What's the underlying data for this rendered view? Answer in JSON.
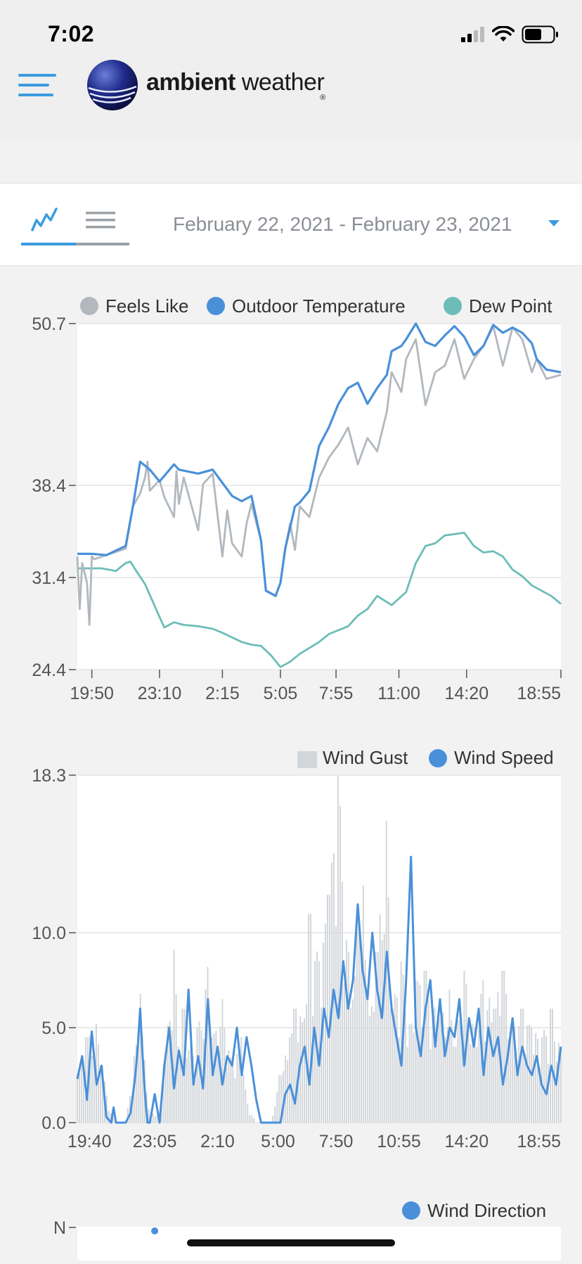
{
  "status_bar": {
    "time": "7:02"
  },
  "header": {
    "menu_icon": "hamburger-menu-icon",
    "logo": {
      "word1": "ambient",
      "word2": "weather",
      "registered": "®"
    }
  },
  "controls": {
    "chart_view_icon": "line-chart-icon",
    "list_view_icon": "list-icon",
    "date_range": "February 22, 2021 - February 23, 2021",
    "dropdown_icon": "caret-down-icon"
  },
  "colors": {
    "accent": "#3c9be0",
    "outdoor_temperature": "#4a90d9",
    "feels_like": "#b2b8be",
    "dew_point": "#6cbdb8",
    "wind_gust": "#d2d6da",
    "wind_speed": "#4a90d9",
    "wind_direction": "#4a90d9"
  },
  "chart_data": [
    {
      "type": "line",
      "legend": [
        "Feels Like",
        "Outdoor Temperature",
        "Dew Point"
      ],
      "y_ticks": [
        "50.7",
        "38.4",
        "31.4",
        "24.4"
      ],
      "x_ticks": [
        "19:50",
        "23:10",
        "2:15",
        "5:05",
        "7:55",
        "11:00",
        "14:20",
        "18:55"
      ],
      "ylim": [
        24.4,
        50.7
      ],
      "grid": true,
      "series": [
        {
          "name": "Outdoor Temperature",
          "x": [
            0,
            0.03,
            0.06,
            0.1,
            0.115,
            0.13,
            0.15,
            0.17,
            0.2,
            0.21,
            0.25,
            0.28,
            0.32,
            0.34,
            0.36,
            0.38,
            0.39,
            0.41,
            0.42,
            0.43,
            0.45,
            0.46,
            0.48,
            0.5,
            0.52,
            0.54,
            0.56,
            0.58,
            0.6,
            0.62,
            0.64,
            0.65,
            0.67,
            0.68,
            0.7,
            0.72,
            0.74,
            0.76,
            0.78,
            0.8,
            0.82,
            0.84,
            0.86,
            0.88,
            0.9,
            0.92,
            0.94,
            0.95,
            0.97,
            1.0
          ],
          "values": [
            33.2,
            33.2,
            33.1,
            33.8,
            36.8,
            40.2,
            39.6,
            38.7,
            40.0,
            39.6,
            39.3,
            39.6,
            37.6,
            37.2,
            37.6,
            34.2,
            30.4,
            30.0,
            31.0,
            33.6,
            36.8,
            37.1,
            38.0,
            41.4,
            42.8,
            44.6,
            45.8,
            46.2,
            44.6,
            45.8,
            46.8,
            48.6,
            49.0,
            49.5,
            50.7,
            49.3,
            49.0,
            49.8,
            50.5,
            49.7,
            48.3,
            49.0,
            50.6,
            50.0,
            50.4,
            50.0,
            49.2,
            48.0,
            47.2,
            47.0
          ]
        },
        {
          "name": "Feels Like",
          "x": [
            0,
            0.005,
            0.01,
            0.02,
            0.025,
            0.03,
            0.035,
            0.06,
            0.1,
            0.115,
            0.13,
            0.14,
            0.145,
            0.15,
            0.17,
            0.18,
            0.2,
            0.205,
            0.21,
            0.22,
            0.25,
            0.26,
            0.28,
            0.3,
            0.31,
            0.32,
            0.34,
            0.35,
            0.36,
            0.38,
            0.39,
            0.41,
            0.42,
            0.43,
            0.44,
            0.45,
            0.46,
            0.48,
            0.5,
            0.52,
            0.54,
            0.56,
            0.58,
            0.6,
            0.62,
            0.64,
            0.65,
            0.67,
            0.68,
            0.7,
            0.72,
            0.74,
            0.76,
            0.78,
            0.8,
            0.82,
            0.84,
            0.86,
            0.88,
            0.9,
            0.92,
            0.94,
            0.95,
            0.97,
            1.0
          ],
          "values": [
            33.0,
            29.0,
            32.5,
            31.0,
            27.8,
            33.0,
            32.8,
            33.1,
            33.6,
            36.8,
            37.8,
            39.0,
            40.2,
            38.0,
            38.8,
            37.5,
            36.0,
            39.5,
            37.0,
            39.0,
            35.0,
            38.5,
            39.3,
            33.0,
            36.5,
            34.0,
            33.0,
            35.5,
            37.0,
            34.2,
            30.4,
            30.0,
            31.0,
            33.6,
            35.5,
            33.5,
            36.8,
            36.0,
            39.0,
            40.5,
            41.5,
            42.8,
            40.0,
            42.0,
            41.0,
            44.0,
            47.0,
            45.5,
            48.0,
            49.5,
            44.5,
            47.0,
            47.5,
            49.5,
            46.5,
            48.0,
            49.0,
            50.5,
            47.5,
            50.4,
            49.5,
            47.0,
            48.0,
            46.5,
            46.8
          ]
        },
        {
          "name": "Dew Point",
          "x": [
            0,
            0.05,
            0.08,
            0.1,
            0.11,
            0.12,
            0.14,
            0.17,
            0.18,
            0.2,
            0.22,
            0.25,
            0.28,
            0.3,
            0.34,
            0.36,
            0.38,
            0.4,
            0.42,
            0.44,
            0.46,
            0.5,
            0.52,
            0.56,
            0.58,
            0.6,
            0.62,
            0.65,
            0.68,
            0.7,
            0.72,
            0.74,
            0.76,
            0.8,
            0.82,
            0.84,
            0.86,
            0.88,
            0.9,
            0.92,
            0.94,
            0.96,
            0.98,
            1.0
          ],
          "values": [
            32.1,
            32.1,
            31.9,
            32.5,
            32.6,
            32.0,
            30.9,
            28.4,
            27.6,
            28.0,
            27.8,
            27.7,
            27.5,
            27.2,
            26.5,
            26.3,
            26.2,
            25.5,
            24.6,
            25.0,
            25.6,
            26.5,
            27.1,
            27.7,
            28.5,
            29.0,
            30.0,
            29.3,
            30.3,
            32.5,
            33.8,
            34.0,
            34.6,
            34.8,
            33.8,
            33.3,
            33.4,
            33.0,
            32.0,
            31.5,
            30.8,
            30.4,
            30.0,
            29.4
          ]
        }
      ]
    },
    {
      "type": "bar",
      "legend": [
        "Wind Gust",
        "Wind Speed"
      ],
      "y_ticks": [
        "18.3",
        "10.0",
        "5.0",
        "0.0"
      ],
      "x_ticks": [
        "19:40",
        "23:05",
        "2:10",
        "5:00",
        "7:50",
        "10:55",
        "14:20",
        "18:55"
      ],
      "ylim": [
        0,
        18.3
      ],
      "grid": true,
      "series": [
        {
          "name": "Wind Gust",
          "x": [
            0,
            0.02,
            0.04,
            0.05,
            0.07,
            0.08,
            0.1,
            0.12,
            0.13,
            0.14,
            0.15,
            0.17,
            0.18,
            0.2,
            0.21,
            0.22,
            0.24,
            0.25,
            0.27,
            0.28,
            0.3,
            0.32,
            0.34,
            0.35,
            0.37,
            0.38,
            0.4,
            0.42,
            0.44,
            0.45,
            0.47,
            0.48,
            0.5,
            0.52,
            0.54,
            0.56,
            0.57,
            0.58,
            0.59,
            0.6,
            0.61,
            0.62,
            0.64,
            0.65,
            0.67,
            0.69,
            0.7,
            0.72,
            0.74,
            0.75,
            0.77,
            0.78,
            0.8,
            0.82,
            0.84,
            0.86,
            0.88,
            0.9,
            0.92,
            0.94,
            0.96,
            0.98,
            1.0
          ],
          "values": [
            2.5,
            4.5,
            5.2,
            3.0,
            0.5,
            0.0,
            0.0,
            3.5,
            6.8,
            3.0,
            0.5,
            0.5,
            3.0,
            9.1,
            4.0,
            6.0,
            3.5,
            5.0,
            8.2,
            4.5,
            6.5,
            3.0,
            4.5,
            1.0,
            0.0,
            0.0,
            0.0,
            2.5,
            4.5,
            6.0,
            5.5,
            11.0,
            8.5,
            12.0,
            18.3,
            9.0,
            6.5,
            10.5,
            12.5,
            7.0,
            6.0,
            9.0,
            15.9,
            6.0,
            8.5,
            5.0,
            7.5,
            8.0,
            6.0,
            5.5,
            7.0,
            4.0,
            8.0,
            5.0,
            7.5,
            6.0,
            8.0,
            5.5,
            6.0,
            5.0,
            4.5,
            6.0,
            4.0
          ]
        },
        {
          "name": "Wind Speed",
          "x": [
            0,
            0.01,
            0.02,
            0.03,
            0.04,
            0.05,
            0.06,
            0.07,
            0.075,
            0.08,
            0.09,
            0.1,
            0.11,
            0.12,
            0.125,
            0.13,
            0.135,
            0.14,
            0.145,
            0.15,
            0.16,
            0.17,
            0.18,
            0.19,
            0.2,
            0.21,
            0.22,
            0.23,
            0.24,
            0.25,
            0.26,
            0.27,
            0.28,
            0.29,
            0.3,
            0.31,
            0.32,
            0.33,
            0.34,
            0.35,
            0.36,
            0.37,
            0.38,
            0.39,
            0.4,
            0.41,
            0.42,
            0.43,
            0.44,
            0.45,
            0.46,
            0.47,
            0.48,
            0.49,
            0.5,
            0.51,
            0.52,
            0.53,
            0.54,
            0.55,
            0.56,
            0.57,
            0.58,
            0.59,
            0.6,
            0.61,
            0.62,
            0.63,
            0.64,
            0.65,
            0.66,
            0.67,
            0.68,
            0.69,
            0.7,
            0.71,
            0.72,
            0.73,
            0.74,
            0.75,
            0.76,
            0.77,
            0.78,
            0.79,
            0.8,
            0.81,
            0.82,
            0.83,
            0.84,
            0.85,
            0.86,
            0.87,
            0.88,
            0.89,
            0.9,
            0.91,
            0.92,
            0.93,
            0.94,
            0.95,
            0.96,
            0.97,
            0.98,
            0.99,
            1.0
          ],
          "values": [
            2.3,
            3.5,
            1.2,
            4.8,
            2.0,
            3.0,
            0.3,
            0.0,
            0.8,
            0.0,
            0.0,
            0.0,
            0.5,
            2.5,
            4.0,
            6.0,
            3.5,
            1.5,
            0.0,
            0.0,
            1.5,
            0.0,
            3.0,
            5.0,
            1.8,
            3.8,
            2.5,
            7.0,
            2.0,
            3.5,
            1.8,
            6.5,
            2.5,
            4.0,
            2.0,
            3.5,
            3.0,
            5.0,
            2.5,
            4.5,
            3.0,
            1.2,
            0.0,
            0.0,
            0.0,
            0.0,
            0.0,
            1.5,
            2.0,
            1.0,
            3.0,
            4.0,
            2.0,
            5.0,
            3.0,
            6.0,
            4.5,
            7.0,
            5.5,
            8.5,
            6.0,
            7.5,
            11.5,
            8.0,
            6.5,
            10.0,
            7.0,
            5.5,
            9.0,
            6.0,
            4.5,
            3.0,
            7.5,
            14.0,
            5.0,
            3.5,
            6.0,
            7.5,
            4.0,
            6.5,
            3.5,
            5.0,
            4.5,
            6.5,
            3.0,
            5.5,
            4.0,
            6.0,
            2.5,
            5.0,
            3.5,
            4.5,
            2.0,
            3.5,
            5.5,
            2.5,
            4.0,
            3.0,
            2.5,
            3.5,
            2.0,
            1.5,
            3.0,
            2.0,
            4.0
          ]
        }
      ]
    },
    {
      "type": "scatter",
      "legend": [
        "Wind Direction"
      ],
      "y_ticks": [
        "N"
      ],
      "series": [
        {
          "name": "Wind Direction",
          "x": [
            0.16
          ],
          "values": [
            0
          ]
        }
      ]
    }
  ]
}
